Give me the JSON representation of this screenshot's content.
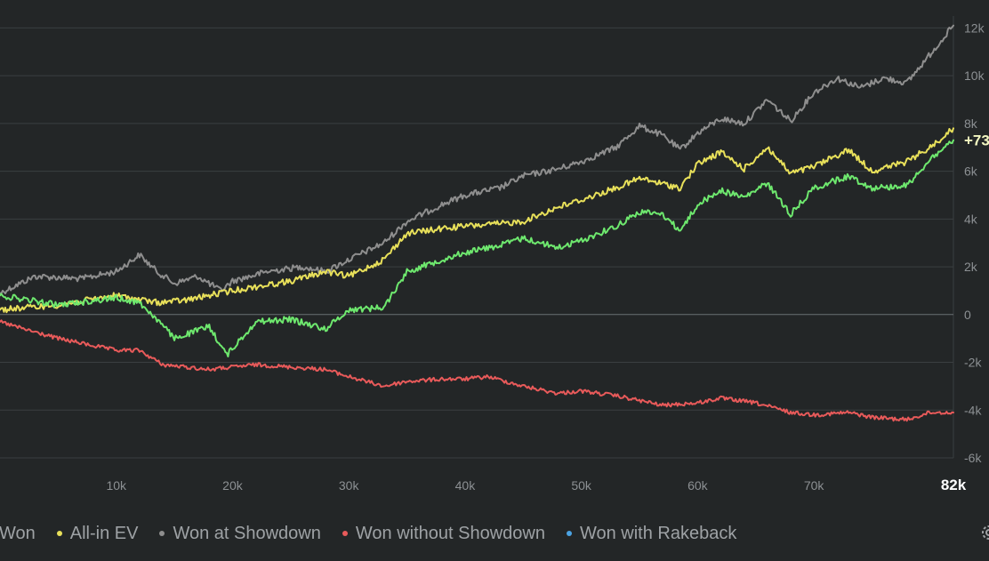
{
  "chart_data": {
    "type": "line",
    "x_unit": "hands",
    "x_ticks": [
      "10k",
      "20k",
      "30k",
      "40k",
      "50k",
      "60k",
      "70k"
    ],
    "x_end_label": "82k",
    "x_range": [
      0,
      82000
    ],
    "y_ticks": [
      "12k",
      "10k",
      "8k",
      "6k",
      "4k",
      "2k",
      "0",
      "-2k",
      "-4k",
      "-6k"
    ],
    "ylim": [
      -6000,
      12500
    ],
    "grid": true,
    "legend_position": "bottom",
    "series": [
      {
        "name": "Won",
        "color": "#6ee86e",
        "end_label": "+73",
        "x": [
          0,
          5000,
          10000,
          12000,
          13500,
          15000,
          18000,
          19500,
          22000,
          25000,
          28000,
          30000,
          33000,
          35000,
          38000,
          40000,
          43000,
          45000,
          48000,
          50000,
          53000,
          55000,
          57000,
          58500,
          60000,
          62000,
          64000,
          66000,
          68000,
          70000,
          73000,
          75000,
          78000,
          80000,
          82000
        ],
        "values": [
          800,
          400,
          700,
          500,
          -200,
          -1000,
          -500,
          -1700,
          -300,
          -200,
          -600,
          200,
          300,
          1800,
          2300,
          2600,
          2900,
          3200,
          2800,
          3100,
          3700,
          4300,
          4200,
          3500,
          4600,
          5200,
          4900,
          5500,
          4200,
          5300,
          5800,
          5300,
          5400,
          6500,
          7300
        ]
      },
      {
        "name": "All-in EV",
        "color": "#e8e05a",
        "x": [
          0,
          5000,
          10000,
          13500,
          16000,
          20000,
          25000,
          28000,
          30000,
          33000,
          35000,
          38000,
          40000,
          43000,
          45000,
          48000,
          50000,
          53000,
          55000,
          58500,
          60000,
          62000,
          64000,
          66000,
          68000,
          70000,
          73000,
          75000,
          78000,
          80000,
          82000
        ],
        "values": [
          200,
          400,
          800,
          500,
          600,
          1000,
          1400,
          1800,
          1600,
          2300,
          3400,
          3600,
          3700,
          3800,
          3900,
          4500,
          4800,
          5300,
          5700,
          5300,
          6300,
          6800,
          6100,
          7000,
          5900,
          6200,
          6900,
          6000,
          6400,
          7000,
          7800
        ]
      },
      {
        "name": "Won at Showdown",
        "color": "#8e8e8e",
        "x": [
          0,
          3000,
          7000,
          10000,
          12000,
          13500,
          15000,
          17000,
          19000,
          20000,
          23000,
          26000,
          28000,
          30000,
          33000,
          35000,
          38000,
          40000,
          43000,
          45000,
          48000,
          50000,
          53000,
          55000,
          57000,
          58500,
          60000,
          62000,
          64000,
          66000,
          68000,
          70000,
          72000,
          74000,
          76000,
          78000,
          80000,
          82000
        ],
        "values": [
          900,
          1600,
          1500,
          1800,
          2500,
          1800,
          1300,
          1600,
          1000,
          1400,
          1800,
          2000,
          1800,
          2300,
          3000,
          3900,
          4600,
          5000,
          5300,
          5800,
          6100,
          6400,
          7000,
          7900,
          7500,
          6900,
          7600,
          8200,
          8000,
          9000,
          8100,
          9300,
          9900,
          9500,
          9900,
          9700,
          10900,
          12100
        ]
      },
      {
        "name": "Won without Showdown",
        "color": "#e85a5a",
        "x": [
          0,
          2000,
          5000,
          8000,
          10000,
          12000,
          14000,
          16000,
          18000,
          20000,
          22000,
          25000,
          28000,
          30000,
          33000,
          35000,
          38000,
          40000,
          42000,
          45000,
          48000,
          50000,
          53000,
          55000,
          57000,
          60000,
          62000,
          65000,
          68000,
          70000,
          73000,
          75000,
          78000,
          80000,
          82000
        ],
        "values": [
          -300,
          -600,
          -1000,
          -1300,
          -1500,
          -1500,
          -2100,
          -2200,
          -2300,
          -2200,
          -2100,
          -2200,
          -2300,
          -2600,
          -3000,
          -2800,
          -2700,
          -2700,
          -2600,
          -3000,
          -3300,
          -3200,
          -3400,
          -3600,
          -3800,
          -3700,
          -3500,
          -3700,
          -4100,
          -4200,
          -4100,
          -4300,
          -4400,
          -4100,
          -4100
        ]
      },
      {
        "name": "Won with Rakeback",
        "color": "#4ba3e3",
        "x": [],
        "values": []
      }
    ]
  },
  "legend": [
    {
      "label": "Won",
      "color": "#6ee86e"
    },
    {
      "label": "All-in EV",
      "color": "#e8e05a"
    },
    {
      "label": "Won at Showdown",
      "color": "#8e8e8e"
    },
    {
      "label": "Won without Showdown",
      "color": "#e85a5a"
    },
    {
      "label": "Won with Rakeback",
      "color": "#4ba3e3"
    }
  ],
  "settings_icon": "gear-icon"
}
